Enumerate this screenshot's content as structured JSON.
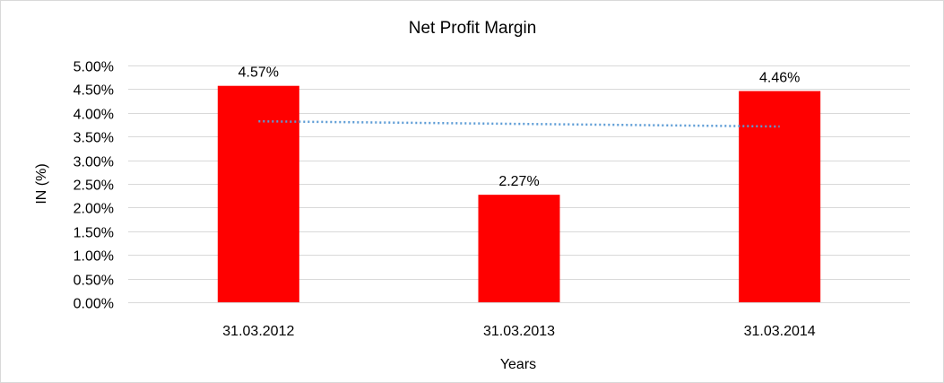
{
  "chart_data": {
    "type": "bar",
    "title": "Net Profit Margin",
    "xlabel": "Years",
    "ylabel": "IN (%)",
    "categories": [
      "31.03.2012",
      "31.03.2013",
      "31.03.2014"
    ],
    "values": [
      4.57,
      2.27,
      4.46
    ],
    "data_labels": [
      "4.57%",
      "2.27%",
      "4.46%"
    ],
    "ylim": [
      0,
      5
    ],
    "yticks": [
      "0.00%",
      "0.50%",
      "1.00%",
      "1.50%",
      "2.00%",
      "2.50%",
      "3.00%",
      "3.50%",
      "4.00%",
      "4.50%",
      "5.00%"
    ],
    "grid": true,
    "bar_color": "#FF0000",
    "trendline": {
      "type": "linear",
      "style": "dotted",
      "color": "#5B9BD5"
    }
  }
}
